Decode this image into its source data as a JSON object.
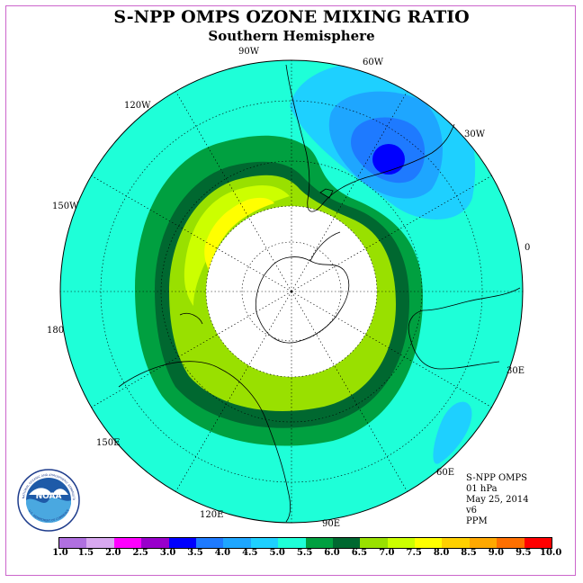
{
  "title": "S-NPP OMPS OZONE MIXING RATIO",
  "subtitle": "Southern Hemisphere",
  "meridian_labels": [
    "0",
    "30E",
    "60E",
    "90E",
    "120E",
    "150E",
    "180",
    "150W",
    "120W",
    "90W",
    "60W",
    "30W"
  ],
  "info": {
    "instrument": "S-NPP OMPS",
    "level": "01 hPa",
    "date": "May 25, 2014",
    "version": "v6",
    "units": "PPM"
  },
  "legend": {
    "ticks": [
      "1.0",
      "1.5",
      "2.0",
      "2.5",
      "3.0",
      "3.5",
      "4.0",
      "4.5",
      "5.0",
      "5.5",
      "6.0",
      "6.5",
      "7.0",
      "7.5",
      "8.0",
      "8.5",
      "9.0",
      "9.5",
      "10.0"
    ],
    "colors": [
      "#b070e0",
      "#d8a8f0",
      "#ff00ff",
      "#9900cc",
      "#0000ff",
      "#1e7aff",
      "#1ea6ff",
      "#1ed0ff",
      "#1effd8",
      "#00a040",
      "#006830",
      "#99e000",
      "#ccff00",
      "#ffff00",
      "#ffd000",
      "#ffa800",
      "#ff7000",
      "#ff0000",
      "#8b5a3c"
    ]
  },
  "logo": {
    "text": "NOAA",
    "ring_text": "NATIONAL OCEANIC AND ATMOSPHERIC ADMINISTRATION",
    "ring_text_bottom": "U.S. DEPARTMENT OF COMMERCE"
  }
}
